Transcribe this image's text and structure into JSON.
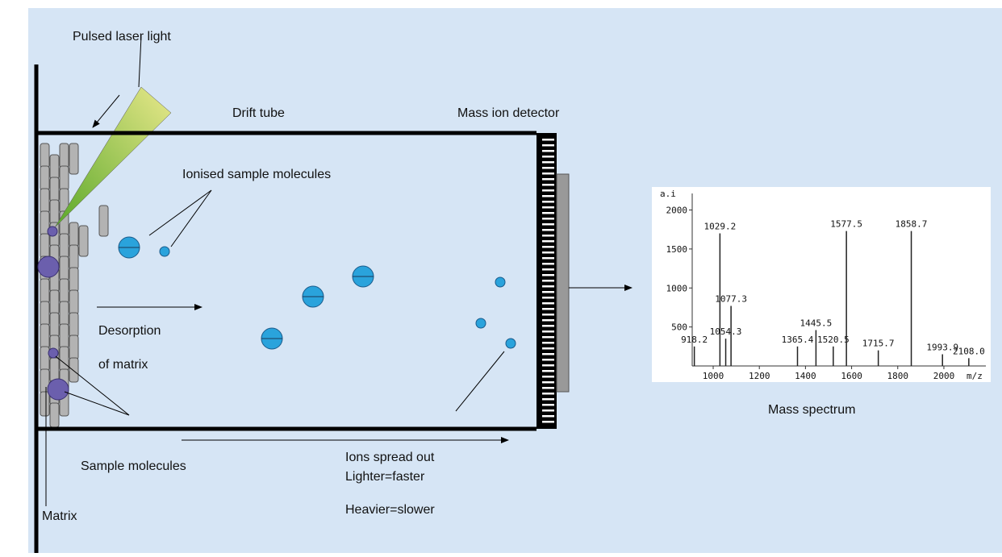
{
  "labels": {
    "laser": "Pulsed laser light",
    "drift_tube": "Drift tube",
    "detector": "Mass ion detector",
    "ionised": "Ionised sample molecules",
    "desorption_1": "Desorption",
    "desorption_2": "of matrix",
    "sample": "Sample molecules",
    "matrix": "Matrix",
    "ions_1": "Ions spread out",
    "ions_2": "Lighter=faster",
    "ions_3": "Heavier=slower",
    "spectrum_caption": "Mass spectrum"
  },
  "spectrum": {
    "y_label": "a.i",
    "x_label": "m/z",
    "xlim": [
      909,
      2182
    ],
    "ylim": [
      0,
      2150
    ],
    "xticks": [
      1000,
      1200,
      1400,
      1600,
      1800,
      2000
    ],
    "yticks": [
      500,
      1000,
      1500,
      2000
    ],
    "peaks": {
      "mz": [
        918.2,
        1029.2,
        1054.3,
        1077.3,
        1365.4,
        1445.5,
        1520.5,
        1577.5,
        1715.7,
        1858.7,
        1993.9,
        2108.0
      ],
      "labels": [
        "918.2",
        "1029.2",
        "1054.3",
        "1077.3",
        "1365.4",
        "1445.5",
        "1520.5",
        "1577.5",
        "1715.7",
        "1858.7",
        "1993.9",
        "2108.0"
      ],
      "heights": [
        250,
        1700,
        350,
        770,
        250,
        460,
        250,
        1730,
        200,
        1730,
        150,
        100
      ]
    }
  }
}
